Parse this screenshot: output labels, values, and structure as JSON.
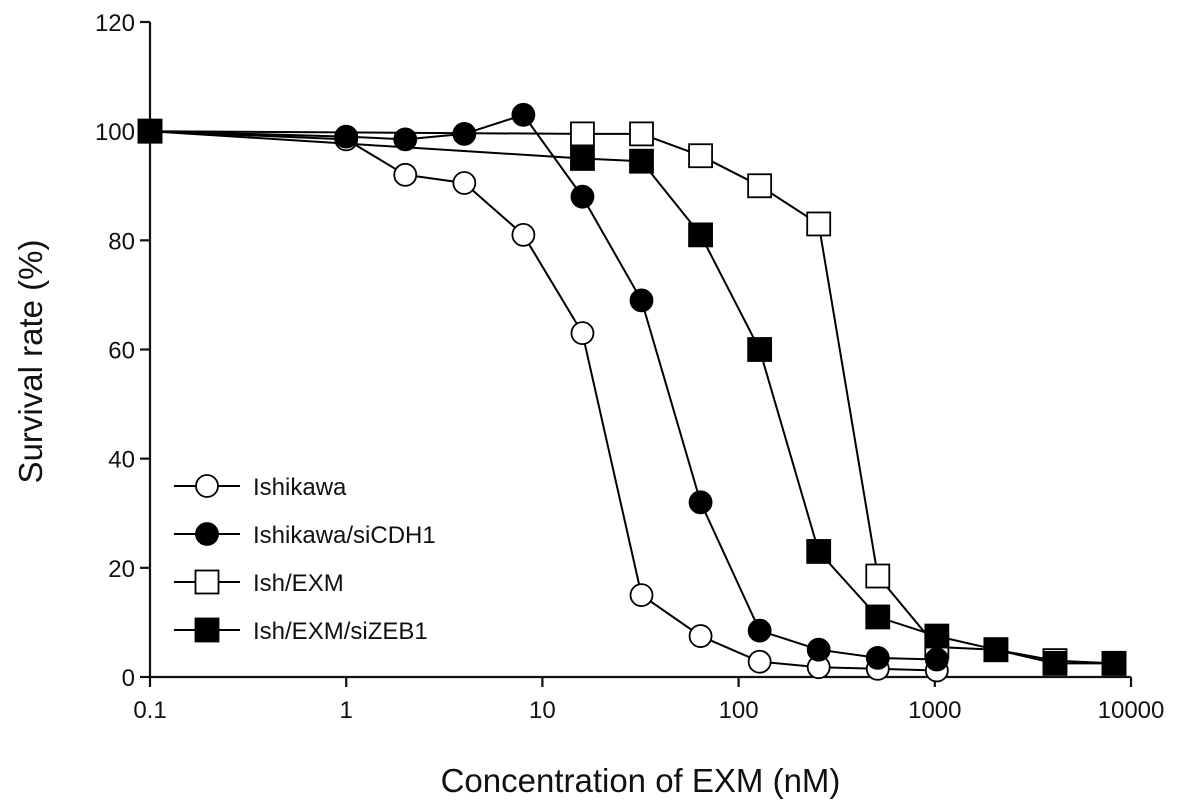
{
  "chart_data": {
    "type": "line",
    "xlabel": "Concentration of EXM (nM)",
    "ylabel": "Survival rate (%)",
    "xscale": "log",
    "xlim": [
      0.1,
      10000
    ],
    "ylim": [
      0,
      120
    ],
    "xticks": [
      0.1,
      1,
      10,
      100,
      1000,
      10000
    ],
    "xtick_labels": [
      "0.1",
      "1",
      "10",
      "100",
      "1000",
      "10000"
    ],
    "yticks": [
      0,
      20,
      40,
      60,
      80,
      100,
      120
    ],
    "ytick_labels": [
      "0",
      "20",
      "40",
      "60",
      "80",
      "100",
      "120"
    ],
    "grid": false,
    "legend_position": "bottom-left",
    "series": [
      {
        "name": "Ishikawa",
        "marker": "circle",
        "fill": "open",
        "x": [
          0.1,
          1,
          2,
          4,
          8,
          16,
          32,
          64,
          128,
          256,
          512,
          1024
        ],
        "y": [
          100,
          98.5,
          92,
          90.5,
          81,
          63,
          15,
          7.5,
          2.8,
          1.8,
          1.5,
          1.2
        ]
      },
      {
        "name": "Ishikawa/siCDH1",
        "marker": "circle",
        "fill": "filled",
        "x": [
          0.1,
          1,
          2,
          4,
          8,
          16,
          32,
          64,
          128,
          256,
          512,
          1024
        ],
        "y": [
          100,
          99,
          98.5,
          99.5,
          103,
          88,
          69,
          32,
          8.5,
          5,
          3.5,
          3.2
        ]
      },
      {
        "name": "Ish/EXM",
        "marker": "square",
        "fill": "open",
        "x": [
          0.1,
          16,
          32,
          64,
          128,
          256,
          512,
          1024,
          2048,
          4096,
          8192
        ],
        "y": [
          100,
          99.5,
          99.5,
          95.5,
          90,
          83,
          18.5,
          5.5,
          5,
          3,
          2.5
        ]
      },
      {
        "name": "Ish/EXM/siZEB1",
        "marker": "square",
        "fill": "filled",
        "x": [
          0.1,
          16,
          32,
          64,
          128,
          256,
          512,
          1024,
          2048,
          4096,
          8192
        ],
        "y": [
          100,
          95,
          94.5,
          81,
          60,
          23,
          11,
          7.5,
          5,
          2.5,
          2.5
        ]
      }
    ]
  }
}
